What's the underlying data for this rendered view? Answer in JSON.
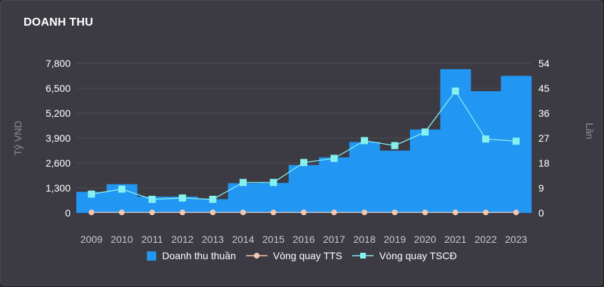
{
  "card": {
    "title": "DOANH THU"
  },
  "colors": {
    "bar": "#2196f3",
    "line_tts": "#f4c7b0",
    "line_tscd": "#86f0ee",
    "grid": "#4e4d56"
  },
  "chart_data": {
    "type": "bar",
    "categories": [
      "2009",
      "2010",
      "2011",
      "2012",
      "2013",
      "2014",
      "2015",
      "2016",
      "2017",
      "2018",
      "2019",
      "2020",
      "2021",
      "2022",
      "2023"
    ],
    "y_left": {
      "label": "Tỷ VND",
      "ticks": [
        "0",
        "1,300",
        "2,600",
        "3,900",
        "5,200",
        "6,500",
        "7,800"
      ],
      "lim": [
        0,
        7800
      ]
    },
    "y_right": {
      "label": "Lần",
      "ticks": [
        "0",
        "9",
        "18",
        "27",
        "36",
        "45",
        "54"
      ],
      "lim": [
        0,
        54
      ]
    },
    "series": [
      {
        "name": "Doanh thu thuần",
        "type": "bar",
        "axis": "left",
        "values": [
          1100,
          1500,
          850,
          850,
          720,
          1550,
          1570,
          2500,
          2900,
          3700,
          3250,
          4350,
          7500,
          6350,
          7150
        ]
      },
      {
        "name": "Vòng quay TTS",
        "type": "line",
        "axis": "right",
        "values": [
          0.2,
          0.2,
          0.2,
          0.2,
          0.2,
          0.2,
          0.2,
          0.2,
          0.2,
          0.2,
          0.2,
          0.2,
          0.2,
          0.2,
          0.2
        ]
      },
      {
        "name": "Vòng quay TSCĐ",
        "type": "line",
        "axis": "right",
        "values": [
          6.8,
          8.6,
          4.9,
          5.4,
          4.9,
          11.0,
          11.0,
          18.2,
          19.7,
          26.1,
          24.3,
          29.2,
          44.0,
          26.7,
          25.9
        ]
      }
    ],
    "legend_position": "bottom",
    "grid": true
  }
}
